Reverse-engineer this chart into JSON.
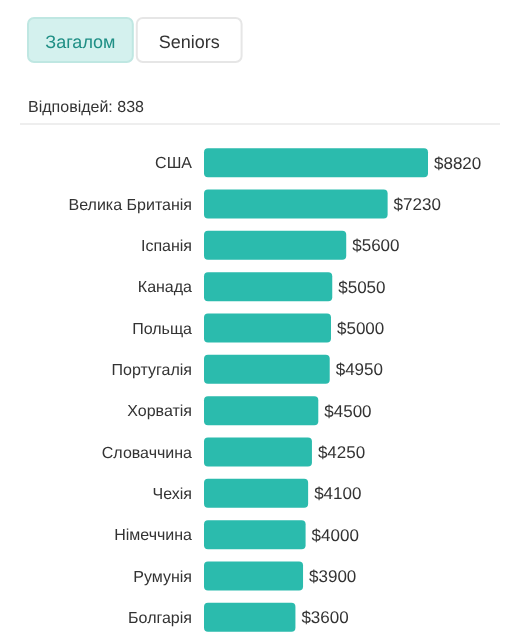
{
  "chart_data": {
    "type": "bar",
    "orientation": "horizontal",
    "annotations": [
      "Загалом",
      "Seniors"
    ],
    "subtitle": "Відповідей: 838",
    "categories": [
      "США",
      "Велика Британія",
      "Іспанія",
      "Канада",
      "Польща",
      "Португалія",
      "Хорватія",
      "Словаччина",
      "Чехія",
      "Німеччина",
      "Румунія",
      "Болгарія"
    ],
    "values": [
      8820,
      7230,
      5600,
      5050,
      5000,
      4950,
      4500,
      4250,
      4100,
      4000,
      3900,
      3600
    ],
    "value_labels": [
      "$8820",
      "$7230",
      "$5600",
      "$5050",
      "$5000",
      "$4950",
      "$4500",
      "$4250",
      "$4100",
      "$4000",
      "$3900",
      "$3600"
    ],
    "color": "#2bbbad"
  }
}
